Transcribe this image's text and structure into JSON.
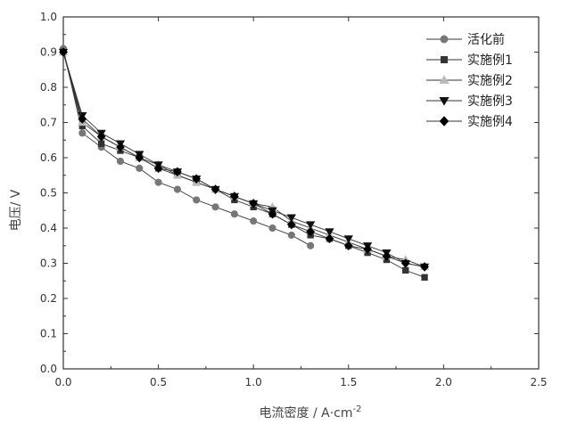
{
  "chart_data": {
    "type": "line",
    "xlabel": "电流密度 / A·cm",
    "xlabel_sup": "-2",
    "ylabel": "电压/ V",
    "xlim": [
      0.0,
      2.5
    ],
    "ylim": [
      0.0,
      1.0
    ],
    "xticks": [
      "0.0",
      "0.5",
      "1.0",
      "1.5",
      "2.0",
      "2.5"
    ],
    "yticks": [
      "0.0",
      "0.1",
      "0.2",
      "0.3",
      "0.4",
      "0.5",
      "0.6",
      "0.7",
      "0.8",
      "0.9",
      "1.0"
    ],
    "grid": false,
    "legend_position": "top-right",
    "series": [
      {
        "name": "活化前",
        "marker": "circle",
        "color": "#777777",
        "points": [
          [
            0.0,
            0.91
          ],
          [
            0.1,
            0.67
          ],
          [
            0.2,
            0.63
          ],
          [
            0.3,
            0.59
          ],
          [
            0.4,
            0.57
          ],
          [
            0.5,
            0.53
          ],
          [
            0.6,
            0.51
          ],
          [
            0.7,
            0.48
          ],
          [
            0.8,
            0.46
          ],
          [
            0.9,
            0.44
          ],
          [
            1.0,
            0.42
          ],
          [
            1.1,
            0.4
          ],
          [
            1.2,
            0.38
          ],
          [
            1.3,
            0.35
          ]
        ]
      },
      {
        "name": "实施例1",
        "marker": "square",
        "color": "#333333",
        "points": [
          [
            0.0,
            0.9
          ],
          [
            0.1,
            0.69
          ],
          [
            0.2,
            0.64
          ],
          [
            0.3,
            0.62
          ],
          [
            0.4,
            0.6
          ],
          [
            0.5,
            0.57
          ],
          [
            0.6,
            0.55
          ],
          [
            0.7,
            0.53
          ],
          [
            0.8,
            0.51
          ],
          [
            0.9,
            0.48
          ],
          [
            1.0,
            0.46
          ],
          [
            1.1,
            0.44
          ],
          [
            1.2,
            0.41
          ],
          [
            1.3,
            0.38
          ],
          [
            1.4,
            0.37
          ],
          [
            1.5,
            0.35
          ],
          [
            1.6,
            0.33
          ],
          [
            1.7,
            0.31
          ],
          [
            1.8,
            0.28
          ],
          [
            1.9,
            0.26
          ]
        ]
      },
      {
        "name": "实施例2",
        "marker": "triangle-up",
        "color": "#bbbbbb",
        "points": [
          [
            0.0,
            0.9
          ],
          [
            0.1,
            0.7
          ],
          [
            0.2,
            0.66
          ],
          [
            0.3,
            0.63
          ],
          [
            0.4,
            0.6
          ],
          [
            0.5,
            0.58
          ],
          [
            0.6,
            0.55
          ],
          [
            0.7,
            0.53
          ],
          [
            0.8,
            0.51
          ],
          [
            0.9,
            0.49
          ],
          [
            1.0,
            0.47
          ],
          [
            1.1,
            0.46
          ],
          [
            1.2,
            0.42
          ],
          [
            1.3,
            0.4
          ],
          [
            1.4,
            0.38
          ],
          [
            1.5,
            0.36
          ],
          [
            1.6,
            0.34
          ],
          [
            1.7,
            0.32
          ],
          [
            1.8,
            0.31
          ],
          [
            1.9,
            0.29
          ]
        ]
      },
      {
        "name": "实施例3",
        "marker": "triangle-down",
        "color": "#111111",
        "points": [
          [
            0.0,
            0.9
          ],
          [
            0.1,
            0.72
          ],
          [
            0.2,
            0.67
          ],
          [
            0.3,
            0.64
          ],
          [
            0.4,
            0.61
          ],
          [
            0.5,
            0.58
          ],
          [
            0.6,
            0.56
          ],
          [
            0.7,
            0.54
          ],
          [
            0.8,
            0.51
          ],
          [
            0.9,
            0.49
          ],
          [
            1.0,
            0.47
          ],
          [
            1.1,
            0.45
          ],
          [
            1.2,
            0.43
          ],
          [
            1.3,
            0.41
          ],
          [
            1.4,
            0.39
          ],
          [
            1.5,
            0.37
          ],
          [
            1.6,
            0.35
          ],
          [
            1.7,
            0.33
          ],
          [
            1.8,
            0.3
          ],
          [
            1.9,
            0.29
          ]
        ]
      },
      {
        "name": "实施例4",
        "marker": "diamond",
        "color": "#000000",
        "points": [
          [
            0.0,
            0.9
          ],
          [
            0.1,
            0.71
          ],
          [
            0.2,
            0.66
          ],
          [
            0.3,
            0.63
          ],
          [
            0.4,
            0.6
          ],
          [
            0.5,
            0.57
          ],
          [
            0.6,
            0.56
          ],
          [
            0.7,
            0.54
          ],
          [
            0.8,
            0.51
          ],
          [
            0.9,
            0.49
          ],
          [
            1.0,
            0.47
          ],
          [
            1.1,
            0.44
          ],
          [
            1.2,
            0.41
          ],
          [
            1.3,
            0.39
          ],
          [
            1.4,
            0.37
          ],
          [
            1.5,
            0.35
          ],
          [
            1.6,
            0.34
          ],
          [
            1.7,
            0.32
          ],
          [
            1.8,
            0.3
          ],
          [
            1.9,
            0.29
          ]
        ]
      }
    ]
  }
}
